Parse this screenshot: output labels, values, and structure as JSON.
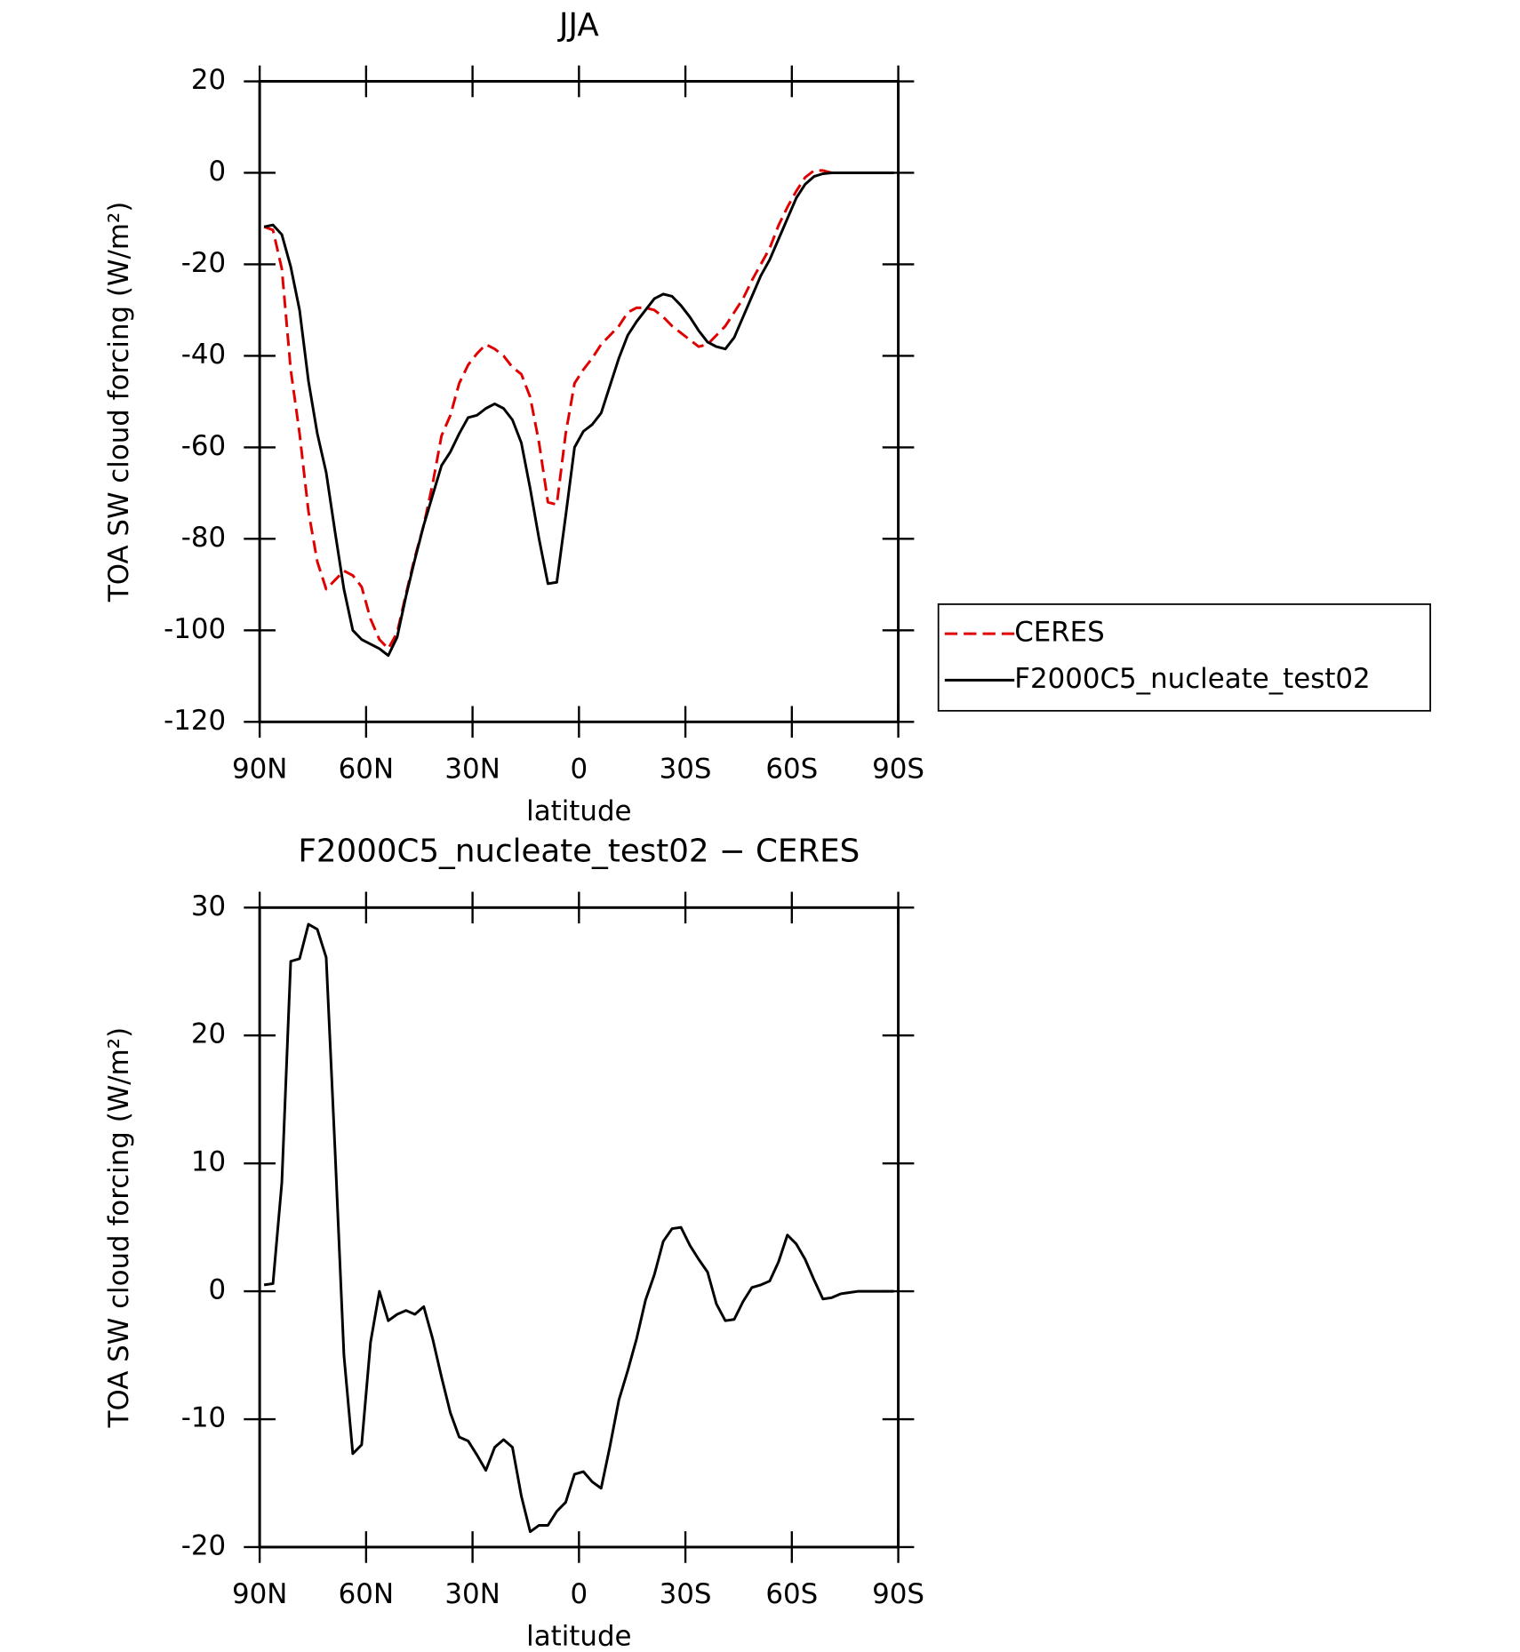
{
  "chart_data": [
    {
      "type": "line",
      "title": "JJA",
      "xlabel": "latitude",
      "ylabel": "TOA SW cloud forcing (W/m²)",
      "x": [
        88.75,
        86.25,
        83.75,
        81.25,
        78.75,
        76.25,
        73.75,
        71.25,
        68.75,
        66.25,
        63.75,
        61.25,
        58.75,
        56.25,
        53.75,
        51.25,
        48.75,
        46.25,
        43.75,
        41.25,
        38.75,
        36.25,
        33.75,
        31.25,
        28.75,
        26.25,
        23.75,
        21.25,
        18.75,
        16.25,
        13.75,
        11.25,
        8.75,
        6.25,
        3.75,
        1.25,
        -1.25,
        -3.75,
        -6.25,
        -8.75,
        -11.25,
        -13.75,
        -16.25,
        -18.75,
        -21.25,
        -23.75,
        -26.25,
        -28.75,
        -31.25,
        -33.75,
        -36.25,
        -38.75,
        -41.25,
        -43.75,
        -46.25,
        -48.75,
        -51.25,
        -53.75,
        -56.25,
        -58.75,
        -61.25,
        -63.75,
        -66.25,
        -68.75,
        -71.25,
        -73.75,
        -76.25,
        -78.75,
        -81.25,
        -83.75,
        -86.25,
        -88.75
      ],
      "xlim": [
        90,
        -90
      ],
      "xticks": [
        {
          "value": 90,
          "label": "90N"
        },
        {
          "value": 60,
          "label": "60N"
        },
        {
          "value": 30,
          "label": "30N"
        },
        0,
        {
          "value": -30,
          "label": "30S"
        },
        {
          "value": -60,
          "label": "60S"
        },
        {
          "value": -90,
          "label": "90S"
        }
      ],
      "ylim": [
        -120,
        20
      ],
      "yticks": [
        -120,
        -100,
        -80,
        -60,
        -40,
        -20,
        0,
        20
      ],
      "legend": "right",
      "series": [
        {
          "name": "CERES",
          "color": "#e00000",
          "style": "dashed",
          "values": [
            -11.8,
            -12.5,
            -21,
            -43,
            -57,
            -74,
            -85,
            -91,
            -89,
            -87,
            -88,
            -90.5,
            -97.5,
            -102,
            -104,
            -100.5,
            -92,
            -84,
            -77,
            -68,
            -57.5,
            -53,
            -46,
            -42,
            -39.5,
            -37.5,
            -38.5,
            -40,
            -42.5,
            -44,
            -49,
            -59,
            -72,
            -72.5,
            -57,
            -46,
            -43,
            -40.5,
            -37.5,
            -35.5,
            -33.5,
            -30.5,
            -29.5,
            -29.5,
            -30,
            -31.5,
            -33.5,
            -35,
            -36.5,
            -38,
            -37.5,
            -35.5,
            -33.5,
            -30.5,
            -27.5,
            -23.5,
            -20,
            -16.5,
            -11.5,
            -7.5,
            -4,
            -1,
            0.5,
            0.5,
            0,
            0,
            0,
            0,
            0,
            0,
            0,
            0
          ]
        },
        {
          "name": "F2000C5_nucleate_test02",
          "color": "#000000",
          "style": "solid",
          "values": [
            -11.8,
            -11.4,
            -13.5,
            -20.5,
            -30,
            -45.5,
            -57,
            -65.5,
            -78.5,
            -91,
            -100,
            -102,
            -103,
            -104,
            -105.5,
            -101.5,
            -92.5,
            -84.5,
            -77,
            -70.5,
            -64,
            -61,
            -57,
            -53.5,
            -53,
            -51.5,
            -50.5,
            -51.5,
            -54,
            -59,
            -69,
            -80,
            -89.8,
            -89.5,
            -75,
            -60,
            -56.5,
            -55,
            -52.5,
            -46.5,
            -40.5,
            -35.5,
            -32.5,
            -30,
            -27.5,
            -26.5,
            -27,
            -29,
            -31.5,
            -34.5,
            -37,
            -38,
            -38.5,
            -36,
            -31.5,
            -27,
            -22.5,
            -19,
            -14.5,
            -10,
            -5.5,
            -2.5,
            -0.8,
            -0.2,
            0,
            0,
            0,
            0,
            0,
            0,
            0,
            0
          ]
        }
      ]
    },
    {
      "type": "line",
      "title": "F2000C5_nucleate_test02 − CERES",
      "xlabel": "latitude",
      "ylabel": "TOA SW cloud forcing (W/m²)",
      "x": [
        88.75,
        86.25,
        83.75,
        81.25,
        78.75,
        76.25,
        73.75,
        71.25,
        68.75,
        66.25,
        63.75,
        61.25,
        58.75,
        56.25,
        53.75,
        51.25,
        48.75,
        46.25,
        43.75,
        41.25,
        38.75,
        36.25,
        33.75,
        31.25,
        28.75,
        26.25,
        23.75,
        21.25,
        18.75,
        16.25,
        13.75,
        11.25,
        8.75,
        6.25,
        3.75,
        1.25,
        -1.25,
        -3.75,
        -6.25,
        -8.75,
        -11.25,
        -13.75,
        -16.25,
        -18.75,
        -21.25,
        -23.75,
        -26.25,
        -28.75,
        -31.25,
        -33.75,
        -36.25,
        -38.75,
        -41.25,
        -43.75,
        -46.25,
        -48.75,
        -51.25,
        -53.75,
        -56.25,
        -58.75,
        -61.25,
        -63.75,
        -66.25,
        -68.75,
        -71.25,
        -73.75,
        -76.25,
        -78.75,
        -81.25,
        -83.75,
        -86.25,
        -88.75
      ],
      "xlim": [
        90,
        -90
      ],
      "xticks": [
        {
          "value": 90,
          "label": "90N"
        },
        {
          "value": 60,
          "label": "60N"
        },
        {
          "value": 30,
          "label": "30N"
        },
        0,
        {
          "value": -30,
          "label": "30S"
        },
        {
          "value": -60,
          "label": "60S"
        },
        {
          "value": -90,
          "label": "90S"
        }
      ],
      "ylim": [
        -20,
        30
      ],
      "yticks": [
        -20,
        -10,
        0,
        10,
        20,
        30
      ],
      "color": "#000000",
      "values": [
        0.5,
        0.6,
        8.5,
        25.8,
        26,
        28.7,
        28.3,
        26.1,
        11,
        -5,
        -12.7,
        -12,
        -4,
        0,
        -2.3,
        -1.8,
        -1.5,
        -1.8,
        -1.2,
        -3.7,
        -6.7,
        -9.5,
        -11.4,
        -11.7,
        -12.8,
        -14,
        -12.2,
        -11.6,
        -12.2,
        -16,
        -18.8,
        -18.3,
        -18.3,
        -17.2,
        -16.5,
        -14.3,
        -14.1,
        -14.9,
        -15.4,
        -12.1,
        -8.5,
        -6.2,
        -3.7,
        -0.7,
        1.3,
        3.9,
        4.9,
        5,
        3.6,
        2.5,
        1.5,
        -1,
        -2.3,
        -2.2,
        -0.8,
        0.3,
        0.5,
        0.8,
        2.3,
        4.4,
        3.7,
        2.5,
        0.9,
        -0.6,
        -0.5,
        -0.2,
        -0.1,
        0,
        0,
        0,
        0,
        0
      ]
    }
  ]
}
